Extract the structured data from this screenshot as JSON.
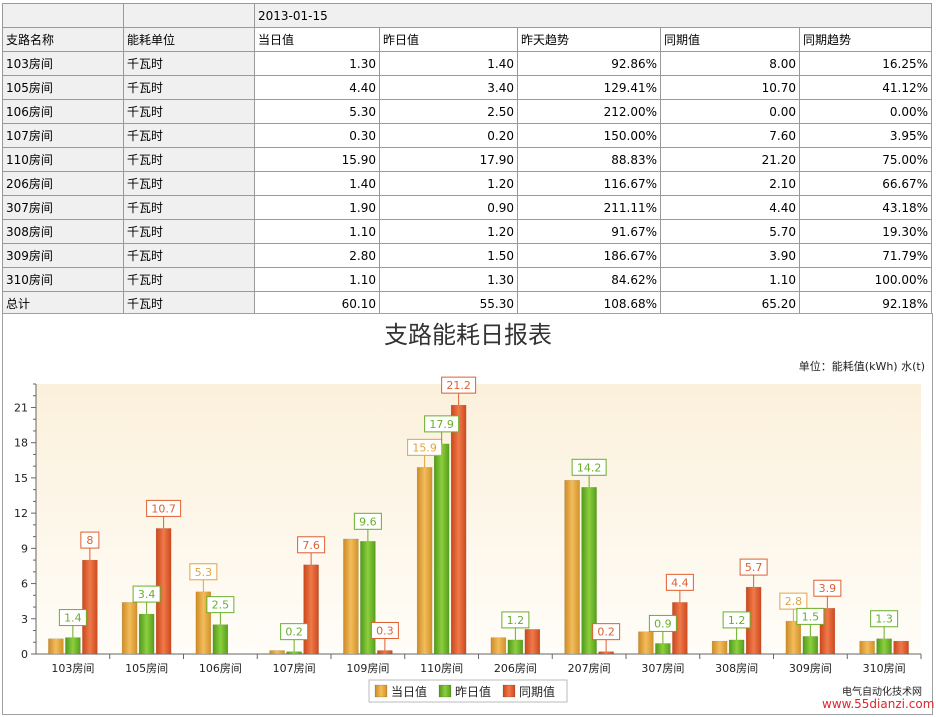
{
  "report": {
    "date": "2013-01-15",
    "columns": [
      "支路名称",
      "能耗单位",
      "当日值",
      "昨日值",
      "昨天趋势",
      "同期值",
      "同期趋势"
    ],
    "rows": [
      [
        "103房间",
        "千瓦时",
        "1.30",
        "1.40",
        "92.86%",
        "8.00",
        "16.25%"
      ],
      [
        "105房间",
        "千瓦时",
        "4.40",
        "3.40",
        "129.41%",
        "10.70",
        "41.12%"
      ],
      [
        "106房间",
        "千瓦时",
        "5.30",
        "2.50",
        "212.00%",
        "0.00",
        "0.00%"
      ],
      [
        "107房间",
        "千瓦时",
        "0.30",
        "0.20",
        "150.00%",
        "7.60",
        "3.95%"
      ],
      [
        "110房间",
        "千瓦时",
        "15.90",
        "17.90",
        "88.83%",
        "21.20",
        "75.00%"
      ],
      [
        "206房间",
        "千瓦时",
        "1.40",
        "1.20",
        "116.67%",
        "2.10",
        "66.67%"
      ],
      [
        "307房间",
        "千瓦时",
        "1.90",
        "0.90",
        "211.11%",
        "4.40",
        "43.18%"
      ],
      [
        "308房间",
        "千瓦时",
        "1.10",
        "1.20",
        "91.67%",
        "5.70",
        "19.30%"
      ],
      [
        "309房间",
        "千瓦时",
        "2.80",
        "1.50",
        "186.67%",
        "3.90",
        "71.79%"
      ],
      [
        "310房间",
        "千瓦时",
        "1.10",
        "1.30",
        "84.62%",
        "1.10",
        "100.00%"
      ],
      [
        "总计",
        "千瓦时",
        "60.10",
        "55.30",
        "108.68%",
        "65.20",
        "92.18%"
      ]
    ]
  },
  "chart_data": {
    "type": "bar",
    "title": "支路能耗日报表",
    "unit_note": "单位：能耗值(kWh) 水(t)",
    "categories": [
      "103房间",
      "105房间",
      "106房间",
      "107房间",
      "109房间",
      "110房间",
      "206房间",
      "207房间",
      "307房间",
      "308房间",
      "309房间",
      "310房间"
    ],
    "series": [
      {
        "name": "当日值",
        "color": "#e3a33a",
        "values": [
          1.3,
          4.4,
          5.3,
          0.3,
          9.8,
          15.9,
          1.4,
          14.8,
          1.9,
          1.1,
          2.8,
          1.1
        ]
      },
      {
        "name": "昨日值",
        "color": "#6aae2a",
        "values": [
          1.4,
          3.4,
          2.5,
          0.2,
          9.6,
          17.9,
          1.2,
          14.2,
          0.9,
          1.2,
          1.5,
          1.3
        ]
      },
      {
        "name": "同期值",
        "color": "#e05f2e",
        "values": [
          8,
          10.7,
          0,
          7.6,
          0.3,
          21.2,
          2.1,
          0.2,
          4.4,
          5.7,
          3.9,
          1.1
        ]
      }
    ],
    "data_labels": [
      {
        "series": 1,
        "index": 0,
        "text": "1.4"
      },
      {
        "series": 2,
        "index": 0,
        "text": "8"
      },
      {
        "series": 1,
        "index": 1,
        "text": "3.4"
      },
      {
        "series": 2,
        "index": 1,
        "text": "10.7"
      },
      {
        "series": 0,
        "index": 2,
        "text": "5.3"
      },
      {
        "series": 1,
        "index": 2,
        "text": "2.5"
      },
      {
        "series": 1,
        "index": 3,
        "text": "0.2"
      },
      {
        "series": 2,
        "index": 3,
        "text": "7.6"
      },
      {
        "series": 1,
        "index": 4,
        "text": "9.6"
      },
      {
        "series": 2,
        "index": 4,
        "text": "0.3"
      },
      {
        "series": 0,
        "index": 5,
        "text": "15.9"
      },
      {
        "series": 1,
        "index": 5,
        "text": "17.9"
      },
      {
        "series": 2,
        "index": 5,
        "text": "21.2"
      },
      {
        "series": 1,
        "index": 6,
        "text": "1.2"
      },
      {
        "series": 1,
        "index": 7,
        "text": "14.2"
      },
      {
        "series": 2,
        "index": 7,
        "text": "0.2"
      },
      {
        "series": 1,
        "index": 8,
        "text": "0.9"
      },
      {
        "series": 2,
        "index": 8,
        "text": "4.4"
      },
      {
        "series": 1,
        "index": 9,
        "text": "1.2"
      },
      {
        "series": 2,
        "index": 9,
        "text": "5.7"
      },
      {
        "series": 0,
        "index": 10,
        "text": "2.8"
      },
      {
        "series": 1,
        "index": 10,
        "text": "1.5"
      },
      {
        "series": 2,
        "index": 10,
        "text": "3.9"
      },
      {
        "series": 1,
        "index": 11,
        "text": "1.3"
      }
    ],
    "ylim": [
      0,
      23
    ],
    "yticks": [
      0,
      3,
      6,
      9,
      12,
      15,
      18,
      21
    ],
    "grid": false,
    "legend": "bottom-center"
  },
  "watermark": {
    "line1": "电气自动化技术网",
    "line2": "www.55dianzi.com"
  }
}
